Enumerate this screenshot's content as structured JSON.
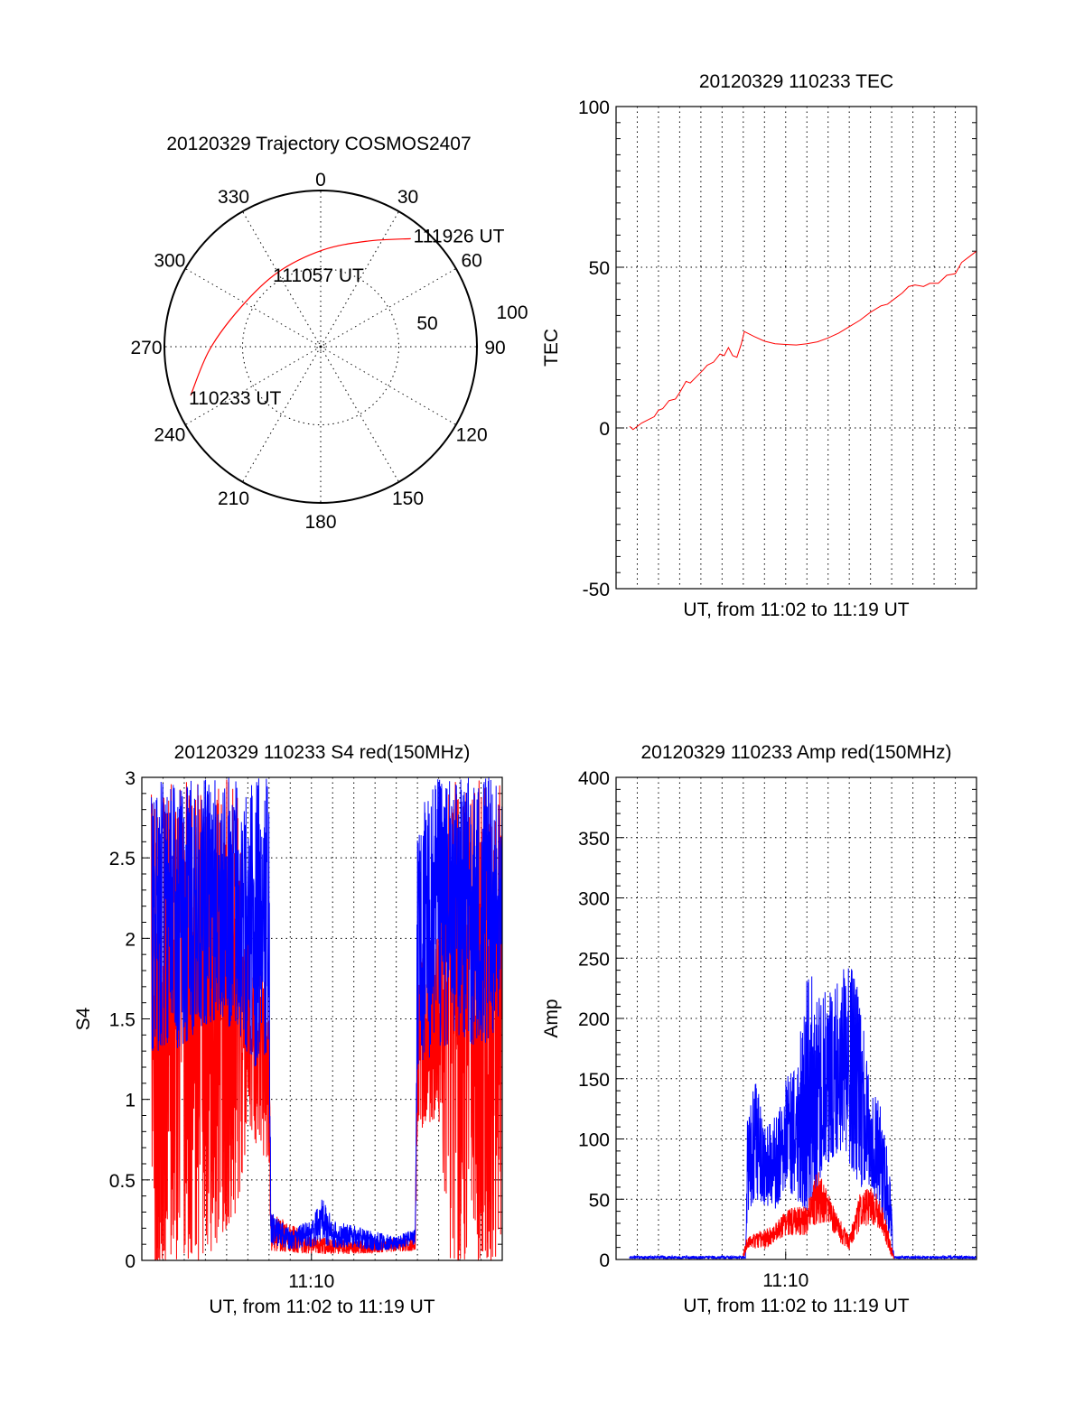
{
  "chart_data": [
    {
      "type": "polar",
      "title": "20120329 Trajectory COSMOS2407",
      "angle_labels": [
        "0",
        "30",
        "60",
        "90",
        "120",
        "150",
        "180",
        "210",
        "240",
        "270",
        "300",
        "330"
      ],
      "radial_labels": [
        "50",
        "100"
      ],
      "rlim": [
        0,
        100
      ],
      "series_color": "#ff0000",
      "trajectory": [
        {
          "az": 249.4,
          "r": 88.9,
          "label": "110233 UT"
        },
        {
          "az": 268.6,
          "r": 71.0
        },
        {
          "az": 296.6,
          "r": 56.9
        },
        {
          "az": 329.7,
          "r": 54.9,
          "label": "111057 UT"
        },
        {
          "az": 1.0,
          "r": 61.8
        },
        {
          "az": 24.0,
          "r": 74.0
        },
        {
          "az": 39.8,
          "r": 90.0,
          "label": "111926 UT"
        }
      ]
    },
    {
      "type": "line",
      "title": "20120329 110233 TEC",
      "xlabel": "UT, from 11:02 to 11:19 UT",
      "ylabel": "TEC",
      "x_units": "minutes after 11:00 UT",
      "xlim": [
        2,
        19
      ],
      "ylim": [
        -50,
        100
      ],
      "yticks": [
        -50,
        0,
        50,
        100
      ],
      "ytick_labels": [
        "-50",
        "0",
        "50",
        "100"
      ],
      "xticks": [],
      "xtick_labels": [],
      "grid": true,
      "series": [
        {
          "name": "TEC",
          "color": "#ff0000",
          "x": [
            2.64,
            2.8,
            3.0,
            3.2,
            3.5,
            3.8,
            4.0,
            4.2,
            4.5,
            4.8,
            5.0,
            5.3,
            5.5,
            5.8,
            6.1,
            6.3,
            6.6,
            6.9,
            7.1,
            7.3,
            7.5,
            7.7,
            7.9,
            8.05,
            8.5,
            9.0,
            9.5,
            10.0,
            10.5,
            11.0,
            11.5,
            12.0,
            12.5,
            13.0,
            13.5,
            14.0,
            14.5,
            14.8,
            15.2,
            15.5,
            15.8,
            16.1,
            16.5,
            16.8,
            17.2,
            17.6,
            18.0,
            18.3,
            18.6,
            19.0
          ],
          "y": [
            0.5,
            -0.5,
            0.5,
            1.5,
            2.5,
            3.5,
            5.5,
            6,
            8.5,
            9,
            11,
            14.5,
            14,
            16,
            18,
            19.5,
            20.5,
            23,
            22.5,
            25,
            22.5,
            22,
            26,
            30,
            28.5,
            27,
            26.2,
            26,
            25.8,
            26.2,
            26.8,
            28,
            29.5,
            31.5,
            33.5,
            36,
            38,
            38.5,
            40.5,
            42,
            44,
            44.5,
            44,
            45,
            45,
            47.5,
            48,
            51.5,
            53,
            55
          ]
        }
      ]
    },
    {
      "type": "line",
      "title": "20120329 110233 S4 red(150MHz)",
      "xlabel": "UT, from 11:02 to 11:19 UT",
      "ylabel": "S4",
      "x_units": "minutes after 11:00 UT",
      "xlim": [
        2,
        19
      ],
      "ylim": [
        0,
        3
      ],
      "yticks": [
        0,
        0.5,
        1,
        1.5,
        2,
        2.5,
        3
      ],
      "ytick_labels": [
        "0",
        "0.5",
        "1",
        "1.5",
        "2",
        "2.5",
        "3"
      ],
      "xticks": [
        10
      ],
      "xtick_labels": [
        "11:10"
      ],
      "grid": true,
      "series_format": "envelope rows [minute, min, max]",
      "series": [
        {
          "name": "red",
          "color": "#ff0000",
          "envelope": [
            [
              2.45,
              0,
              3
            ],
            [
              5,
              0,
              3
            ],
            [
              6.5,
              0.3,
              3
            ],
            [
              7.0,
              0.8,
              2.2
            ],
            [
              8.0,
              0.6,
              1.8
            ],
            [
              8.08,
              0.06,
              0.3
            ],
            [
              10,
              0.04,
              0.15
            ],
            [
              12,
              0.04,
              0.12
            ],
            [
              14.9,
              0.06,
              0.15
            ],
            [
              15.0,
              0.8,
              1.8
            ],
            [
              16,
              0.9,
              2.2
            ],
            [
              16.5,
              0,
              3
            ],
            [
              19,
              0,
              3
            ]
          ]
        },
        {
          "name": "blue",
          "color": "#0000ff",
          "envelope": [
            [
              2.45,
              1.3,
              3
            ],
            [
              3.5,
              1.3,
              3
            ],
            [
              4.5,
              1.4,
              3
            ],
            [
              5.5,
              1.5,
              3
            ],
            [
              6.5,
              1.4,
              3
            ],
            [
              7.3,
              1.2,
              3
            ],
            [
              8.0,
              1.3,
              3
            ],
            [
              8.08,
              0.1,
              0.3
            ],
            [
              9,
              0.07,
              0.2
            ],
            [
              10,
              0.08,
              0.25
            ],
            [
              10.5,
              0.1,
              0.4
            ],
            [
              11,
              0.08,
              0.25
            ],
            [
              12,
              0.08,
              0.22
            ],
            [
              13,
              0.06,
              0.18
            ],
            [
              14,
              0.07,
              0.15
            ],
            [
              14.9,
              0.1,
              0.2
            ],
            [
              15.0,
              1.2,
              2.8
            ],
            [
              16,
              1.3,
              3
            ],
            [
              17,
              1.4,
              3
            ],
            [
              18,
              1.3,
              3
            ],
            [
              19,
              1.5,
              3
            ]
          ]
        }
      ]
    },
    {
      "type": "line",
      "title": "20120329 110233 Amp red(150MHz)",
      "xlabel": "UT, from 11:02 to 11:19 UT",
      "ylabel": "Amp",
      "x_units": "minutes after 11:00 UT",
      "xlim": [
        2,
        19
      ],
      "ylim": [
        0,
        400
      ],
      "yticks": [
        0,
        50,
        100,
        150,
        200,
        250,
        300,
        350,
        400
      ],
      "ytick_labels": [
        "0",
        "50",
        "100",
        "150",
        "200",
        "250",
        "300",
        "350",
        "400"
      ],
      "xticks": [
        10
      ],
      "xtick_labels": [
        "11:10"
      ],
      "grid": true,
      "series_format": "envelope rows [minute, min, max]",
      "series": [
        {
          "name": "blue",
          "color": "#0000ff",
          "envelope": [
            [
              2.64,
              0.5,
              3
            ],
            [
              8.1,
              0.5,
              3
            ],
            [
              8.2,
              40,
              120
            ],
            [
              8.6,
              50,
              150
            ],
            [
              9.0,
              45,
              110
            ],
            [
              9.5,
              40,
              120
            ],
            [
              10.0,
              60,
              150
            ],
            [
              10.5,
              50,
              160
            ],
            [
              11.0,
              40,
              240
            ],
            [
              11.5,
              60,
              230
            ],
            [
              12.0,
              80,
              220
            ],
            [
              12.5,
              90,
              240
            ],
            [
              13.0,
              80,
              250
            ],
            [
              13.5,
              60,
              220
            ],
            [
              14.0,
              60,
              140
            ],
            [
              14.5,
              40,
              130
            ],
            [
              14.9,
              20,
              80
            ],
            [
              15.1,
              0.5,
              3
            ],
            [
              19,
              0.5,
              3
            ]
          ]
        },
        {
          "name": "red",
          "color": "#ff0000",
          "envelope": [
            [
              8.0,
              0,
              8
            ],
            [
              8.2,
              10,
              20
            ],
            [
              9,
              8,
              25
            ],
            [
              9.5,
              15,
              30
            ],
            [
              10,
              20,
              40
            ],
            [
              10.5,
              20,
              45
            ],
            [
              11,
              20,
              45
            ],
            [
              11.5,
              30,
              75
            ],
            [
              12,
              30,
              55
            ],
            [
              12.5,
              15,
              35
            ],
            [
              13.0,
              8,
              20
            ],
            [
              13.5,
              25,
              55
            ],
            [
              14,
              30,
              60
            ],
            [
              14.5,
              25,
              50
            ],
            [
              14.9,
              5,
              20
            ],
            [
              15.1,
              0,
              3
            ]
          ]
        }
      ]
    }
  ]
}
